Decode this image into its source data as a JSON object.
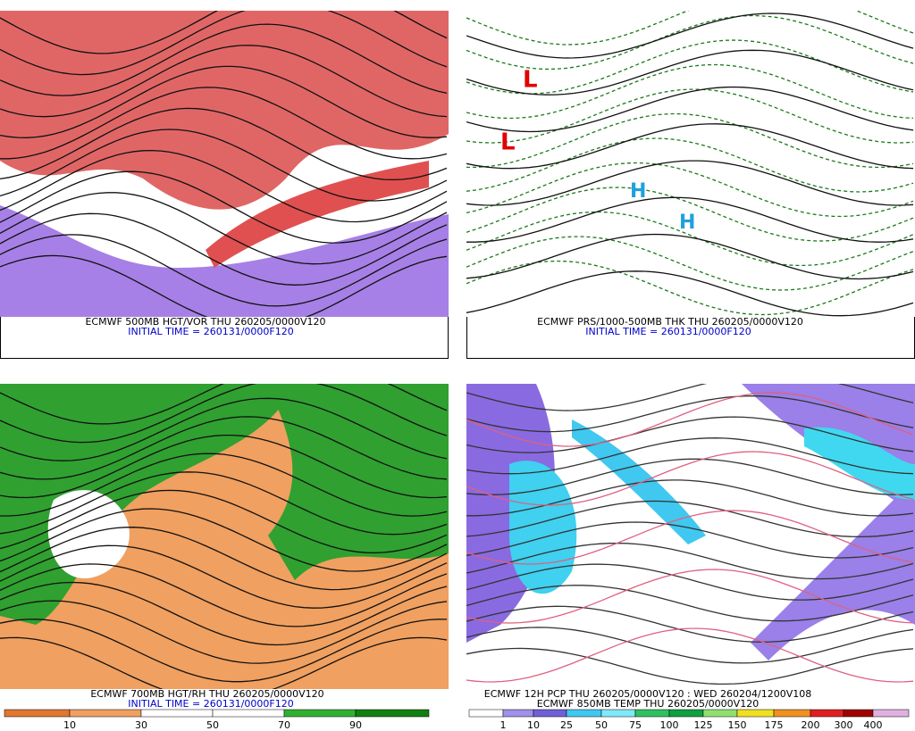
{
  "panels": [
    {
      "caption": "ECMWF 500MB HGT/VOR THU 260205/0000V120",
      "subcaption": "INITIAL TIME = 260131/0000F120"
    },
    {
      "caption": "ECMWF PRS/1000-500MB THK THU 260205/0000V120",
      "subcaption": "INITIAL TIME = 260131/0000F120"
    },
    {
      "caption": "ECMWF 700MB HGT/RH THU 260205/0000V120",
      "subcaption": "INITIAL TIME = 260131/0000F120",
      "colorbar": [
        10,
        30,
        50,
        70,
        90
      ]
    },
    {
      "caption": "ECMWF 12H PCP THU 260205/0000V120 : WED 260204/1200V108",
      "subcaption": "ECMWF 850MB TEMP THU 260205/0000V120",
      "colorbar": [
        1,
        10,
        25,
        50,
        75,
        100,
        125,
        150,
        175,
        200,
        300,
        400
      ]
    }
  ]
}
